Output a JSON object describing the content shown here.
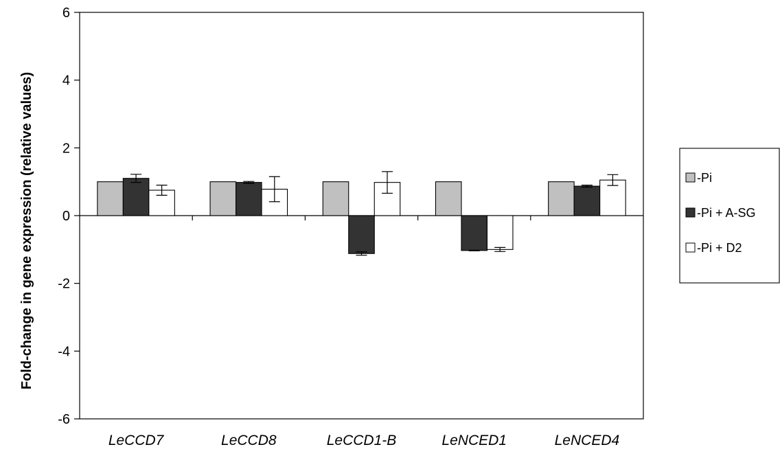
{
  "chart_data": {
    "type": "bar",
    "title": "",
    "xlabel": "",
    "ylabel": "Fold-change in gene expression (relative values)",
    "ylim": [
      -6,
      6
    ],
    "yticks": [
      6,
      4,
      2,
      0,
      -2,
      -4,
      -6
    ],
    "grid": false,
    "legend_position": "right",
    "categories": [
      "LeCCD7",
      "LeCCD8",
      "LeCCD1-B",
      "LeNCED1",
      "LeNCED4"
    ],
    "series": [
      {
        "name": "-Pi",
        "color": "#c0c0c0",
        "values": [
          1,
          1,
          1,
          1,
          1
        ],
        "errors": [
          0,
          0,
          0,
          0,
          0
        ]
      },
      {
        "name": "-Pi + A-SG",
        "color": "#333333",
        "values": [
          1.1,
          0.98,
          -1.12,
          -1.03,
          0.87
        ],
        "errors": [
          0.12,
          0.03,
          0.05,
          0.01,
          0.03
        ]
      },
      {
        "name": "-Pi + D2",
        "color": "#ffffff",
        "values": [
          0.75,
          0.78,
          0.98,
          -1.0,
          1.05
        ],
        "errors": [
          0.15,
          0.37,
          0.32,
          0.06,
          0.16
        ]
      }
    ]
  }
}
